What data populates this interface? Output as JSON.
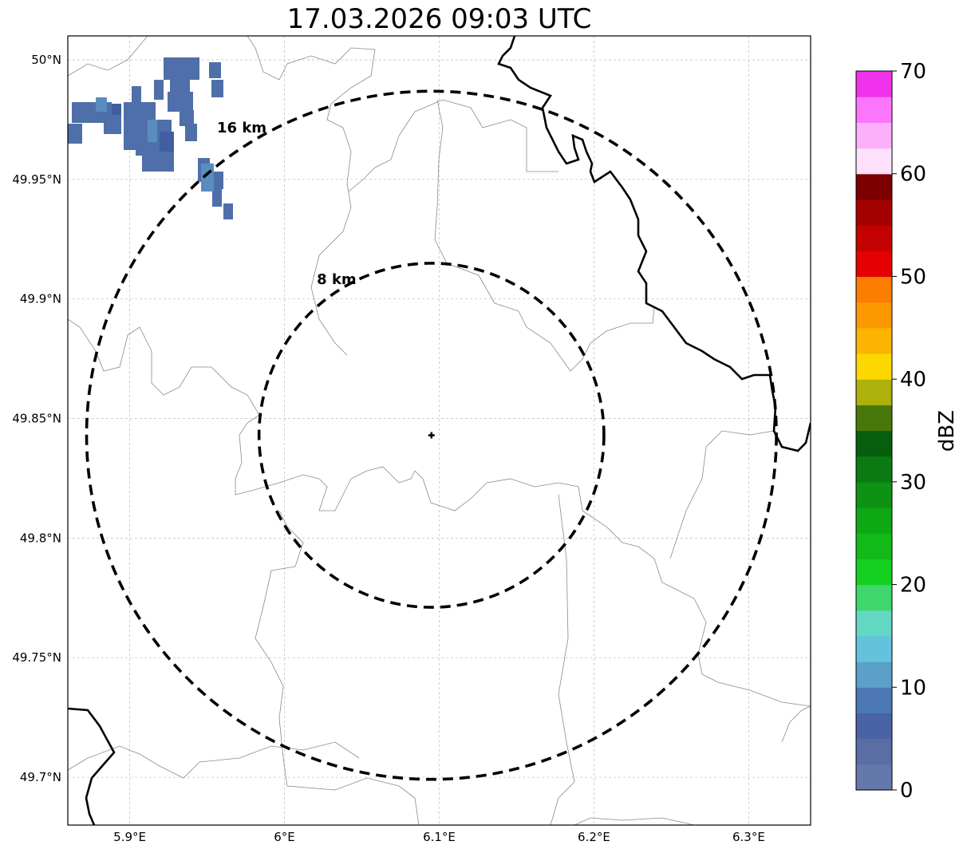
{
  "title": "17.03.2026 09:03 UTC",
  "map": {
    "lon_range": [
      5.86,
      6.34
    ],
    "lat_range": [
      49.68,
      50.01
    ],
    "lon_ticks": [
      {
        "value": 5.9,
        "label": "5.9°E"
      },
      {
        "value": 6.0,
        "label": "6°E"
      },
      {
        "value": 6.1,
        "label": "6.1°E"
      },
      {
        "value": 6.2,
        "label": "6.2°E"
      },
      {
        "value": 6.3,
        "label": "6.3°E"
      }
    ],
    "lat_ticks": [
      {
        "value": 50.0,
        "label": "50°N"
      },
      {
        "value": 49.95,
        "label": "49.95°N"
      },
      {
        "value": 49.9,
        "label": "49.9°N"
      },
      {
        "value": 49.85,
        "label": "49.85°N"
      },
      {
        "value": 49.8,
        "label": "49.8°N"
      },
      {
        "value": 49.75,
        "label": "49.75°N"
      },
      {
        "value": 49.7,
        "label": "49.7°N"
      }
    ],
    "grid": true,
    "radar_site": {
      "lon": 6.095,
      "lat": 49.843
    },
    "range_rings": [
      {
        "label": "8 km",
        "km": 8
      },
      {
        "label": "16 km",
        "km": 16
      }
    ],
    "echo_colors": [
      "#4e6fa9",
      "#4a70b0",
      "#5a8cc0",
      "#3f5fa0"
    ]
  },
  "colorbar": {
    "label": "dBZ",
    "min": 0,
    "max": 70,
    "ticks": [
      0,
      10,
      20,
      30,
      40,
      50,
      60,
      70
    ],
    "colors": [
      "#6479ab",
      "#5a6da5",
      "#4963a6",
      "#4c79b3",
      "#5aa0c9",
      "#64c2dc",
      "#62d8c4",
      "#3fd66c",
      "#14cf1e",
      "#11ba16",
      "#0fa815",
      "#0d9214",
      "#0b7a12",
      "#075e0d",
      "#48780a",
      "#adb10a",
      "#fcd800",
      "#fcb400",
      "#fc9800",
      "#fc7d00",
      "#e40000",
      "#c40000",
      "#a30000",
      "#7c0000",
      "#fce0fc",
      "#fcb0fc",
      "#fc76fc",
      "#f032ec"
    ]
  }
}
